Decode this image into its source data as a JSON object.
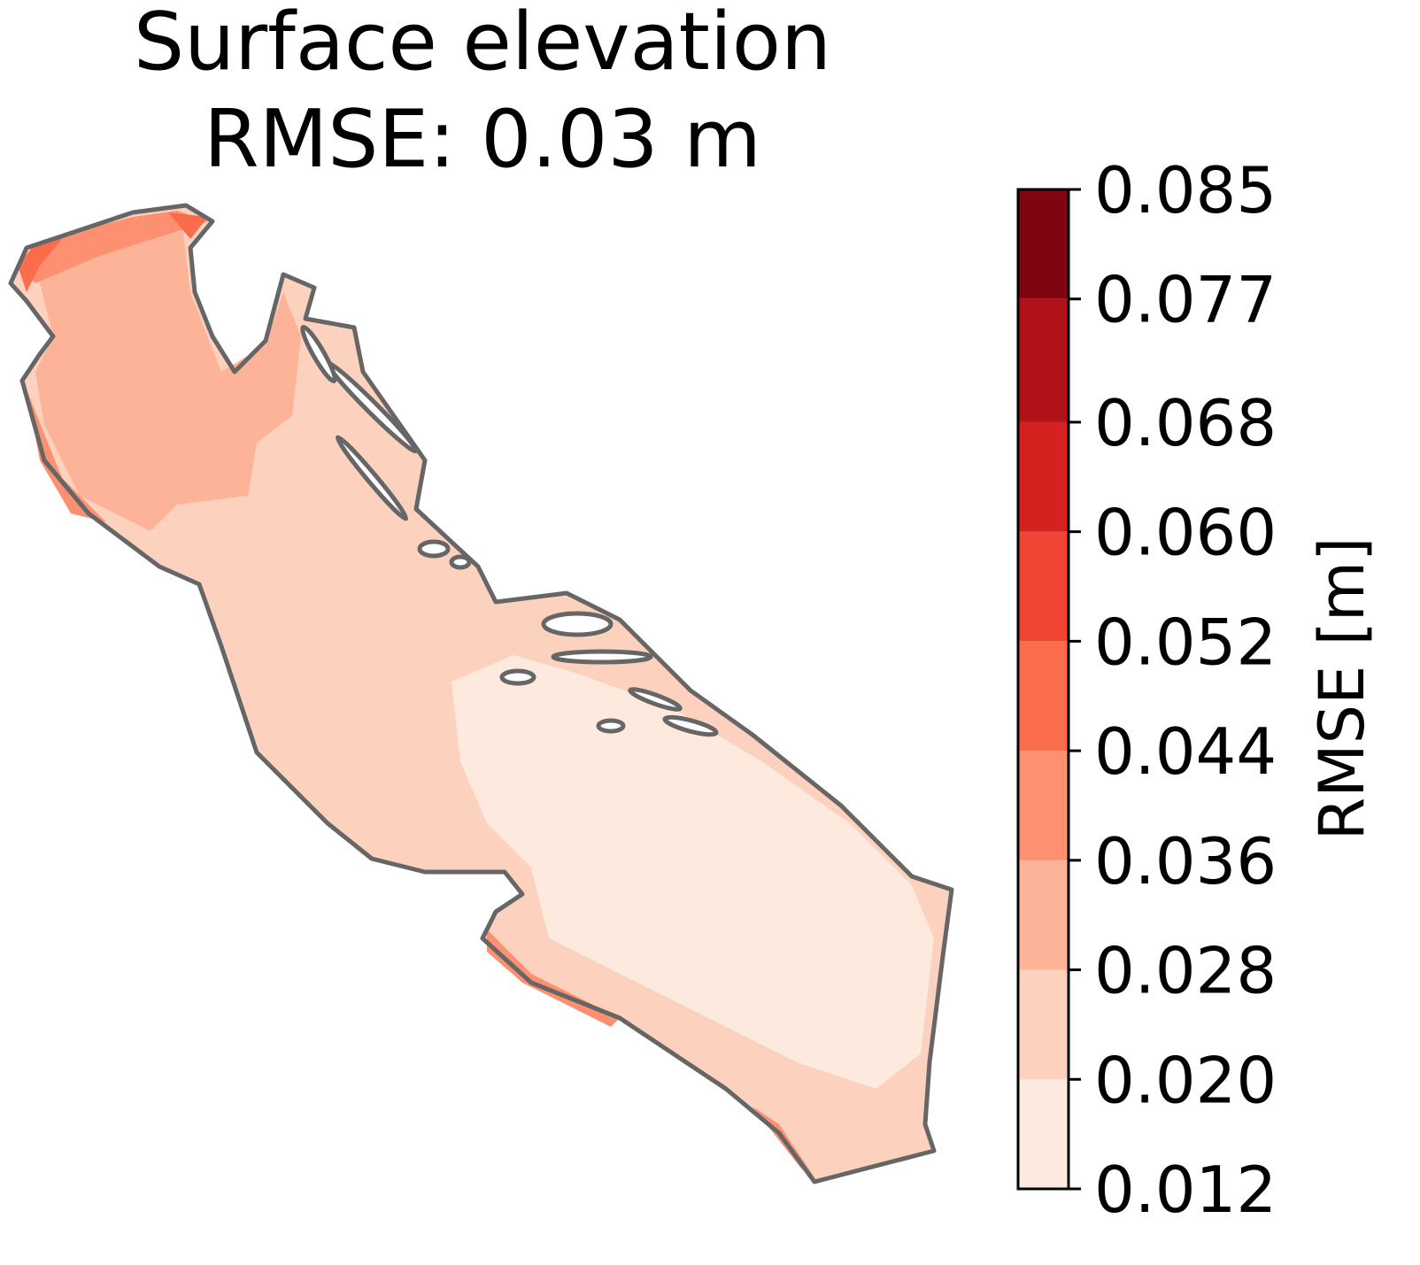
{
  "chart_data": {
    "type": "contour-map",
    "title": [
      "Surface elevation",
      "RMSE: 0.03 m"
    ],
    "colorbar": {
      "label": "RMSE [m]",
      "clim": [
        0.012,
        0.085
      ],
      "ticks": [
        0.012,
        {
          "value": 0.02,
          "label": "0.020"
        },
        0.028,
        0.036,
        0.044,
        0.052,
        {
          "value": 0.06,
          "label": "0.060"
        },
        0.068,
        0.077,
        0.085
      ],
      "colors": [
        "#fee9df",
        "#fcd1be",
        "#fcb398",
        "#fc9070",
        "#fb6c4c",
        "#f14432",
        "#d52221",
        "#b01217",
        "#7f0610"
      ]
    }
  }
}
